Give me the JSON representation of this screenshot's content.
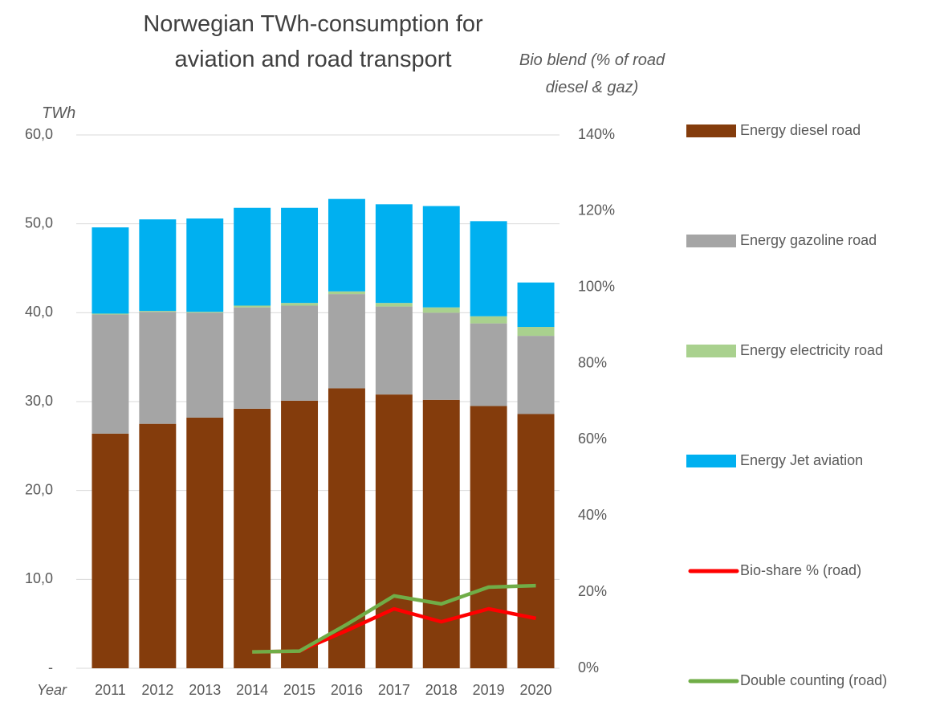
{
  "chart_data": {
    "type": "bar",
    "stacked": true,
    "title": "Norwegian TWh-consumption for aviation and road transport",
    "y_label": "TWh",
    "y2_label": "Bio blend (% of road diesel & gaz)",
    "x_label": "Year",
    "categories": [
      "2011",
      "2012",
      "2013",
      "2014",
      "2015",
      "2016",
      "2017",
      "2018",
      "2019",
      "2020"
    ],
    "series": [
      {
        "name": "Energy diesel road",
        "color": "#843c0c",
        "values": [
          26.4,
          27.5,
          28.2,
          29.2,
          30.1,
          31.5,
          30.8,
          30.2,
          29.5,
          28.6
        ]
      },
      {
        "name": "Energy gazoline road",
        "color": "#a5a5a5",
        "values": [
          13.4,
          12.6,
          11.8,
          11.4,
          10.7,
          10.6,
          9.9,
          9.8,
          9.3,
          8.8
        ]
      },
      {
        "name": "Energy electricity road",
        "color": "#a9d18e",
        "values": [
          0.1,
          0.1,
          0.1,
          0.2,
          0.3,
          0.3,
          0.4,
          0.6,
          0.8,
          1.0
        ]
      },
      {
        "name": "Energy Jet aviation",
        "color": "#00b0f0",
        "values": [
          9.7,
          10.3,
          10.5,
          11.0,
          10.7,
          10.4,
          11.1,
          11.4,
          10.7,
          5.0
        ]
      },
      {
        "name": "Bio-share % (road)",
        "color": "#ff0000",
        "type": "line",
        "axis": "y2",
        "values": [
          null,
          null,
          null,
          4.3,
          4.5,
          9.9,
          15.6,
          12.2,
          15.6,
          13.1
        ]
      },
      {
        "name": "Double counting (road)",
        "color": "#70ad47",
        "type": "line",
        "axis": "y2",
        "values": [
          null,
          null,
          null,
          4.3,
          4.5,
          11.5,
          19.0,
          16.9,
          21.3,
          21.7
        ]
      }
    ],
    "ylim": [
      0,
      60
    ],
    "yticks": [
      {
        "value": 0,
        "label": "-"
      },
      {
        "value": 10,
        "label": "10,0"
      },
      {
        "value": 20,
        "label": "20,0"
      },
      {
        "value": 30,
        "label": "30,0"
      },
      {
        "value": 40,
        "label": "40,0"
      },
      {
        "value": 50,
        "label": "50,0"
      },
      {
        "value": 60,
        "label": "60,0"
      }
    ],
    "y2lim": [
      0,
      140
    ],
    "y2ticks": [
      {
        "value": 0,
        "label": "0%"
      },
      {
        "value": 20,
        "label": "20%"
      },
      {
        "value": 40,
        "label": "40%"
      },
      {
        "value": 60,
        "label": "60%"
      },
      {
        "value": 80,
        "label": "80%"
      },
      {
        "value": 100,
        "label": "100%"
      },
      {
        "value": 120,
        "label": "120%"
      },
      {
        "value": 140,
        "label": "140%"
      }
    ],
    "grid": true,
    "legend": "right"
  }
}
